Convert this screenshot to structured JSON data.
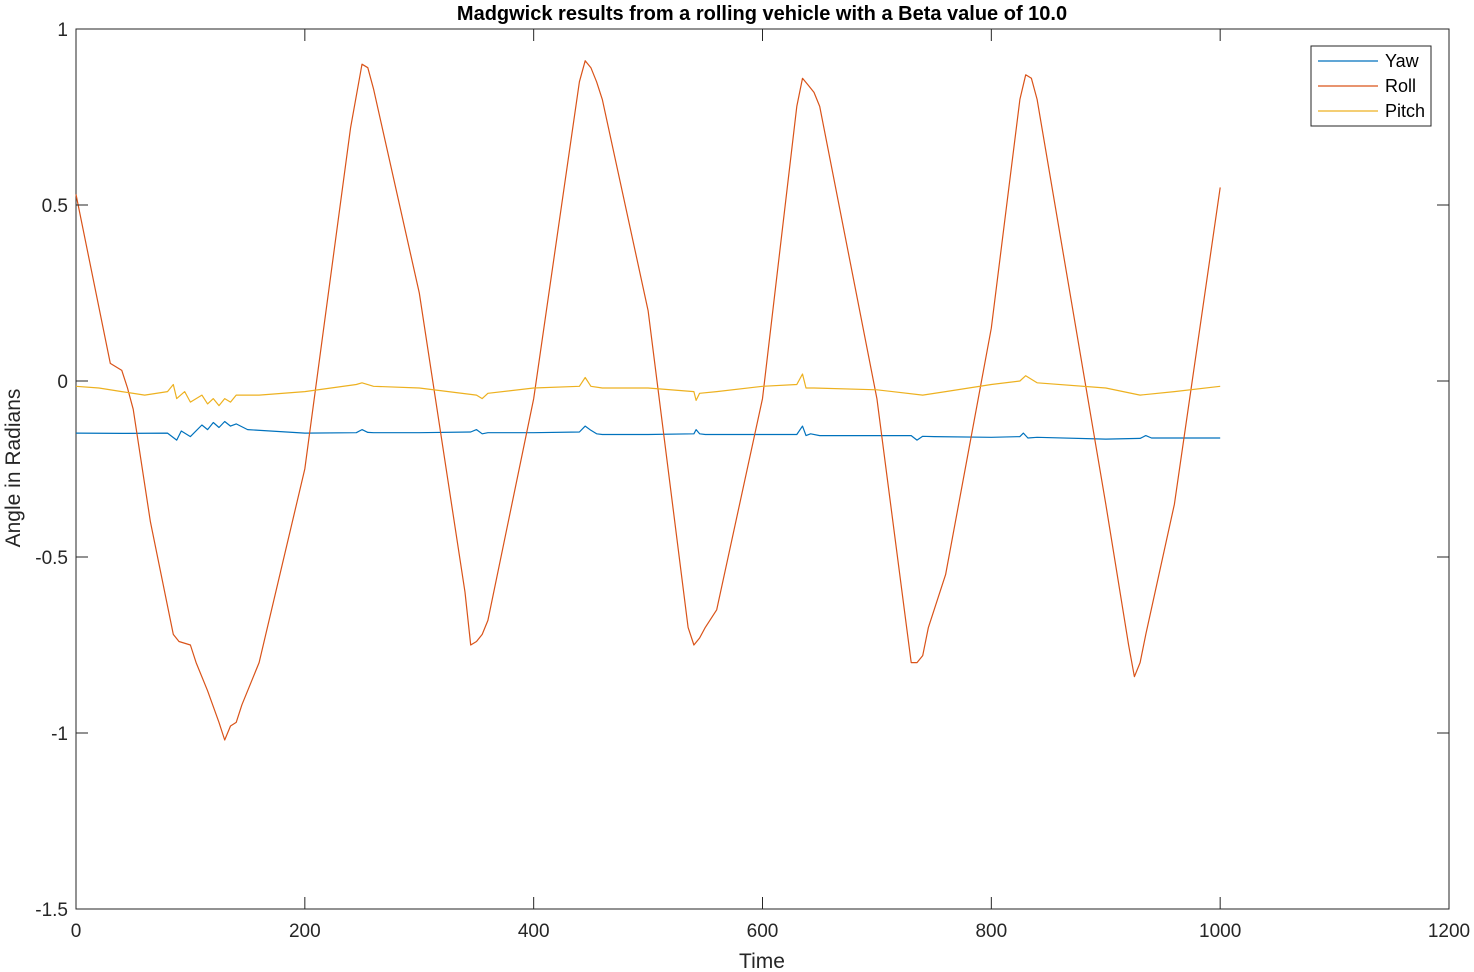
{
  "chart_data": {
    "type": "line",
    "title": "Madgwick results from a rolling vehicle with a Beta value of 10.0",
    "xlabel": "Time",
    "ylabel": "Angle in Radians",
    "xlim": [
      0,
      1200
    ],
    "ylim": [
      -1.5,
      1
    ],
    "xticks": [
      0,
      200,
      400,
      600,
      800,
      1000,
      1200
    ],
    "xtick_labels": [
      "0",
      "200",
      "400",
      "600",
      "800",
      "1000",
      "1200"
    ],
    "yticks": [
      1,
      0.5,
      0,
      -0.5,
      -1,
      -1.5
    ],
    "ytick_labels": [
      "1",
      "0.5",
      "0",
      "-0.5",
      "-1",
      "-1.5"
    ],
    "grid": false,
    "legend_position": "top-right",
    "series": [
      {
        "name": "Yaw",
        "color": "#0072BD",
        "x": [
          0,
          40,
          80,
          88,
          92,
          100,
          110,
          115,
          120,
          125,
          130,
          135,
          140,
          150,
          200,
          245,
          250,
          255,
          260,
          300,
          345,
          350,
          355,
          360,
          400,
          440,
          445,
          450,
          455,
          460,
          500,
          540,
          542,
          545,
          550,
          600,
          630,
          635,
          638,
          642,
          650,
          700,
          730,
          735,
          740,
          750,
          800,
          825,
          828,
          832,
          840,
          900,
          930,
          935,
          940,
          1000
        ],
        "y": [
          -0.148,
          -0.149,
          -0.148,
          -0.168,
          -0.142,
          -0.158,
          -0.125,
          -0.138,
          -0.118,
          -0.132,
          -0.115,
          -0.128,
          -0.122,
          -0.138,
          -0.148,
          -0.147,
          -0.138,
          -0.146,
          -0.147,
          -0.147,
          -0.145,
          -0.138,
          -0.15,
          -0.147,
          -0.147,
          -0.145,
          -0.128,
          -0.14,
          -0.15,
          -0.152,
          -0.152,
          -0.15,
          -0.138,
          -0.15,
          -0.152,
          -0.152,
          -0.152,
          -0.128,
          -0.155,
          -0.15,
          -0.155,
          -0.155,
          -0.155,
          -0.168,
          -0.157,
          -0.158,
          -0.16,
          -0.158,
          -0.148,
          -0.162,
          -0.16,
          -0.165,
          -0.163,
          -0.155,
          -0.162,
          -0.162
        ]
      },
      {
        "name": "Roll",
        "color": "#D95319",
        "x": [
          0,
          30,
          40,
          45,
          50,
          65,
          85,
          90,
          100,
          105,
          115,
          125,
          130,
          135,
          140,
          145,
          160,
          200,
          240,
          250,
          255,
          260,
          300,
          340,
          345,
          350,
          355,
          360,
          400,
          440,
          445,
          450,
          455,
          460,
          500,
          535,
          540,
          545,
          550,
          560,
          600,
          630,
          635,
          640,
          645,
          650,
          700,
          730,
          735,
          740,
          745,
          760,
          800,
          825,
          830,
          835,
          840,
          900,
          920,
          925,
          930,
          935,
          960,
          1000
        ],
        "y": [
          0.53,
          0.05,
          0.03,
          -0.02,
          -0.08,
          -0.4,
          -0.72,
          -0.74,
          -0.75,
          -0.8,
          -0.88,
          -0.97,
          -1.02,
          -0.98,
          -0.97,
          -0.92,
          -0.8,
          -0.25,
          0.72,
          0.9,
          0.89,
          0.83,
          0.25,
          -0.6,
          -0.75,
          -0.74,
          -0.72,
          -0.68,
          -0.05,
          0.85,
          0.91,
          0.89,
          0.85,
          0.8,
          0.2,
          -0.7,
          -0.75,
          -0.73,
          -0.7,
          -0.65,
          -0.05,
          0.78,
          0.86,
          0.84,
          0.82,
          0.78,
          -0.05,
          -0.8,
          -0.8,
          -0.78,
          -0.7,
          -0.55,
          0.15,
          0.8,
          0.87,
          0.86,
          0.8,
          -0.35,
          -0.75,
          -0.84,
          -0.8,
          -0.72,
          -0.35,
          0.55
        ]
      },
      {
        "name": "Pitch",
        "color": "#EDB120",
        "x": [
          0,
          20,
          40,
          60,
          80,
          85,
          88,
          95,
          100,
          110,
          115,
          120,
          125,
          130,
          135,
          140,
          160,
          200,
          245,
          250,
          260,
          300,
          350,
          355,
          360,
          400,
          440,
          445,
          450,
          460,
          500,
          540,
          542,
          545,
          560,
          600,
          630,
          635,
          638,
          645,
          700,
          740,
          760,
          800,
          825,
          830,
          840,
          900,
          930,
          960,
          1000
        ],
        "y": [
          -0.015,
          -0.02,
          -0.03,
          -0.04,
          -0.03,
          -0.01,
          -0.05,
          -0.03,
          -0.06,
          -0.04,
          -0.065,
          -0.05,
          -0.07,
          -0.05,
          -0.06,
          -0.04,
          -0.04,
          -0.03,
          -0.01,
          -0.005,
          -0.015,
          -0.02,
          -0.04,
          -0.05,
          -0.035,
          -0.02,
          -0.015,
          0.01,
          -0.015,
          -0.02,
          -0.02,
          -0.03,
          -0.055,
          -0.035,
          -0.03,
          -0.015,
          -0.01,
          0.02,
          -0.02,
          -0.02,
          -0.025,
          -0.04,
          -0.03,
          -0.01,
          0.0,
          0.015,
          -0.005,
          -0.02,
          -0.04,
          -0.03,
          -0.015
        ]
      }
    ]
  }
}
